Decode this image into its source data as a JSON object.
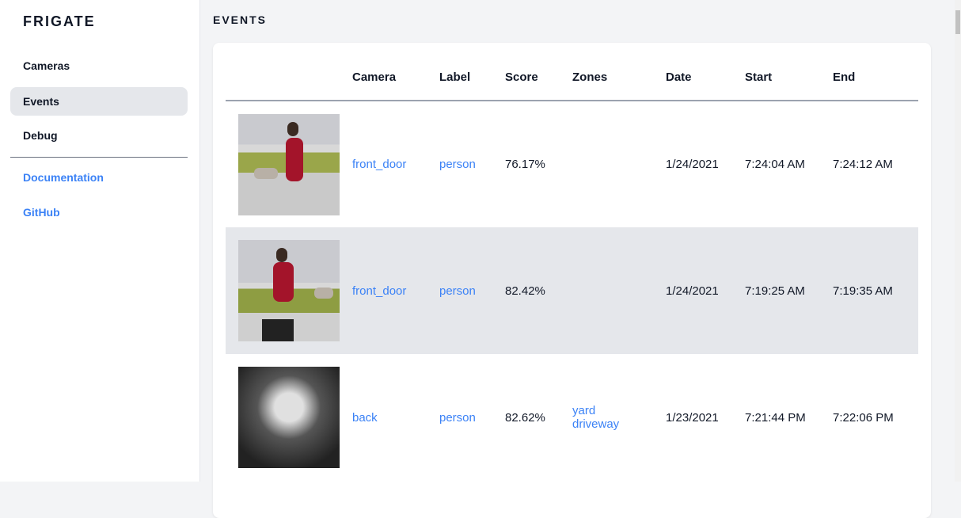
{
  "sidebar": {
    "brand": "FRIGATE",
    "items": [
      {
        "label": "Cameras"
      },
      {
        "label": "Events",
        "active": true
      },
      {
        "label": "Debug"
      }
    ],
    "links": [
      {
        "label": "Documentation"
      },
      {
        "label": "GitHub"
      }
    ]
  },
  "main": {
    "title": "EVENTS",
    "columns": [
      "",
      "Camera",
      "Label",
      "Score",
      "Zones",
      "Date",
      "Start",
      "End"
    ],
    "rows": [
      {
        "camera": "front_door",
        "label": "person",
        "score": "76.17%",
        "zones": [
          "",
          ""
        ],
        "date": "1/24/2021",
        "start": "7:24:04 AM",
        "end": "7:24:12 AM"
      },
      {
        "camera": "front_door",
        "label": "person",
        "score": "82.42%",
        "zones": [
          "",
          ""
        ],
        "date": "1/24/2021",
        "start": "7:19:25 AM",
        "end": "7:19:35 AM"
      },
      {
        "camera": "back",
        "label": "person",
        "score": "82.62%",
        "zones": [
          "yard",
          "driveway"
        ],
        "date": "1/23/2021",
        "start": "7:21:44 PM",
        "end": "7:22:06 PM"
      }
    ]
  },
  "colors": {
    "accent": "#3b82f6",
    "active_bg": "#e5e7eb",
    "page_bg": "#f3f4f6"
  }
}
